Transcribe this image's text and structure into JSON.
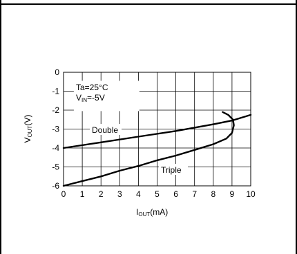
{
  "chart_data": {
    "type": "line",
    "title": "",
    "xlabel": {
      "main": "I",
      "sub": "OUT",
      "unit": "(mA)"
    },
    "ylabel": {
      "main": "V",
      "sub": "OUT",
      "unit": "(V)"
    },
    "xlim": [
      0,
      10
    ],
    "ylim": [
      -6,
      0
    ],
    "x_ticks": [
      "0",
      "1",
      "2",
      "3",
      "4",
      "5",
      "6",
      "7",
      "8",
      "9",
      "10"
    ],
    "y_ticks": [
      "0",
      "-1",
      "-2",
      "-3",
      "-4",
      "-5",
      "-6"
    ],
    "grid": true,
    "annotations": [
      {
        "main": "Ta=25°C"
      },
      {
        "main": "V",
        "sub": "IN",
        "rest": "=-5V"
      }
    ],
    "series": [
      {
        "name": "Double",
        "x": [
          0,
          2,
          4,
          6,
          8,
          9,
          10
        ],
        "y": [
          -4.0,
          -3.7,
          -3.4,
          -3.1,
          -2.75,
          -2.55,
          -2.25
        ]
      },
      {
        "name": "Triple",
        "x": [
          0,
          1,
          2,
          3,
          4,
          5,
          6,
          7,
          8,
          8.7,
          9.0,
          9.1,
          9.05,
          8.8,
          8.5
        ],
        "y": [
          -6.0,
          -5.75,
          -5.5,
          -5.2,
          -4.95,
          -4.65,
          -4.4,
          -4.1,
          -3.8,
          -3.5,
          -3.2,
          -2.8,
          -2.5,
          -2.25,
          -2.1
        ]
      }
    ]
  }
}
